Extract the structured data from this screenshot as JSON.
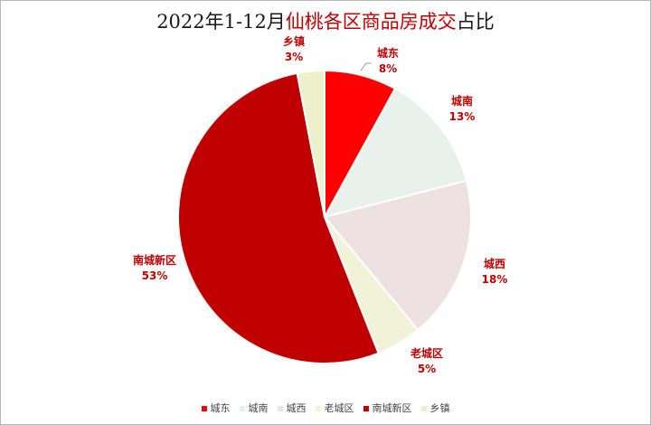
{
  "title": {
    "prefix": "2022年1-12月",
    "accent": "仙桃各区商品房成交",
    "suffix": "占比"
  },
  "chart_data": {
    "type": "pie",
    "categories": [
      "城东",
      "城南",
      "城西",
      "老城区",
      "南城新区",
      "乡镇"
    ],
    "values": [
      8,
      13,
      18,
      5,
      53,
      3
    ],
    "value_suffix": "%",
    "colors": [
      "#ff0000",
      "#e8f1ec",
      "#ede1e1",
      "#f2f2d8",
      "#c00000",
      "#ecf1cc"
    ],
    "label_color": "#c00000",
    "legend_position": "bottom"
  }
}
